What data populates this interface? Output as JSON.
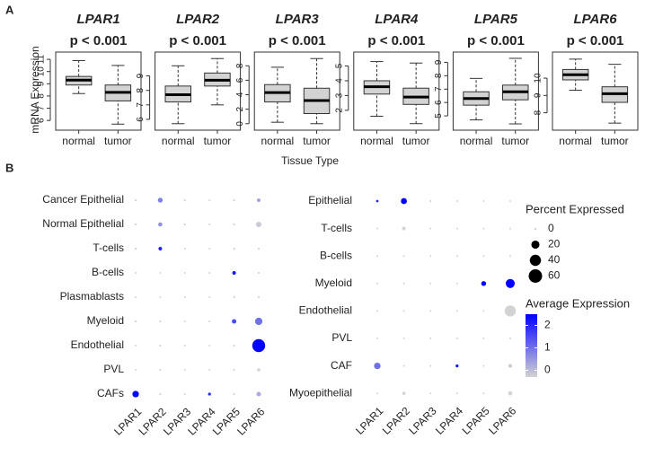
{
  "panel_labels": [
    "A",
    "B"
  ],
  "y_label": "mRNA Expression",
  "x_label": "Tissue Type",
  "chart_data": [
    {
      "type": "box",
      "title": "LPAR1",
      "subtitle": "p < 0.001",
      "categories": [
        "normal",
        "tumor"
      ],
      "color": "#d3d3d3",
      "boxes": [
        {
          "min": 8.2,
          "q1": 8.9,
          "median": 9.3,
          "q3": 9.6,
          "max": 10.9
        },
        {
          "min": 5.7,
          "q1": 7.6,
          "median": 8.3,
          "q3": 8.9,
          "max": 10.5
        }
      ],
      "ylim": [
        5.5,
        11.3
      ],
      "yticks": [
        6,
        7,
        8,
        9,
        10,
        11
      ]
    },
    {
      "type": "box",
      "title": "LPAR2",
      "subtitle": "p < 0.001",
      "categories": [
        "normal",
        "tumor"
      ],
      "color": "#d3d3d3",
      "boxes": [
        {
          "min": 5.7,
          "q1": 7.2,
          "median": 7.7,
          "q3": 8.3,
          "max": 9.7
        },
        {
          "min": 7.0,
          "q1": 8.3,
          "median": 8.7,
          "q3": 9.2,
          "max": 10.2
        }
      ],
      "ylim": [
        5.5,
        10.4
      ],
      "yticks": [
        6,
        7,
        8,
        9
      ]
    },
    {
      "type": "box",
      "title": "LPAR3",
      "subtitle": "p < 0.001",
      "categories": [
        "normal",
        "tumor"
      ],
      "color": "#d3d3d3",
      "boxes": [
        {
          "min": 0.2,
          "q1": 3.0,
          "median": 4.3,
          "q3": 5.4,
          "max": 7.8
        },
        {
          "min": 0,
          "q1": 1.4,
          "median": 3.2,
          "q3": 4.9,
          "max": 9.0
        }
      ],
      "ylim": [
        -0.4,
        9.4
      ],
      "yticks": [
        0,
        2,
        4,
        6,
        8
      ]
    },
    {
      "type": "box",
      "title": "LPAR4",
      "subtitle": "p < 0.001",
      "categories": [
        "normal",
        "tumor"
      ],
      "color": "#d3d3d3",
      "boxes": [
        {
          "min": 1.6,
          "q1": 3.1,
          "median": 3.6,
          "q3": 4.0,
          "max": 5.3
        },
        {
          "min": 1.1,
          "q1": 2.4,
          "median": 2.9,
          "q3": 3.5,
          "max": 5.2
        }
      ],
      "ylim": [
        0.9,
        5.7
      ],
      "yticks": [
        2,
        3,
        4,
        5
      ]
    },
    {
      "type": "box",
      "title": "LPAR5",
      "subtitle": "p < 0.001",
      "categories": [
        "normal",
        "tumor"
      ],
      "color": "#d3d3d3",
      "boxes": [
        {
          "min": 4.7,
          "q1": 5.8,
          "median": 6.3,
          "q3": 6.8,
          "max": 7.8
        },
        {
          "min": 4.4,
          "q1": 6.2,
          "median": 6.8,
          "q3": 7.3,
          "max": 9.3
        }
      ],
      "ylim": [
        4.2,
        9.5
      ],
      "yticks": [
        5,
        6,
        7,
        8,
        9
      ]
    },
    {
      "type": "box",
      "title": "LPAR6",
      "subtitle": "p < 0.001",
      "categories": [
        "normal",
        "tumor"
      ],
      "color": "#d3d3d3",
      "boxes": [
        {
          "min": 9.3,
          "q1": 9.9,
          "median": 10.2,
          "q3": 10.5,
          "max": 11.1
        },
        {
          "min": 7.4,
          "q1": 8.6,
          "median": 9.1,
          "q3": 9.5,
          "max": 10.8
        }
      ],
      "ylim": [
        7.2,
        11.3
      ],
      "yticks": [
        8,
        9,
        10
      ]
    },
    {
      "type": "dot",
      "x_categories": [
        "LPAR1",
        "LPAR2",
        "LPAR3",
        "LPAR4",
        "LPAR5",
        "LPAR6"
      ],
      "y_categories": [
        "Cancer Epithelial",
        "Normal Epithelial",
        "T-cells",
        "B-cells",
        "Plasmablasts",
        "Myeloid",
        "Endothelial",
        "PVL",
        "CAFs"
      ],
      "percent": [
        [
          0.5,
          6,
          0.5,
          0.3,
          0.5,
          3
        ],
        [
          0.5,
          4,
          0.5,
          0.3,
          0.5,
          8
        ],
        [
          0.5,
          3,
          0.3,
          0.3,
          0.5,
          0.5
        ],
        [
          0.3,
          0.3,
          0.3,
          0.3,
          3,
          0.5
        ],
        [
          0.3,
          0.3,
          0.3,
          0.3,
          0.5,
          0.5
        ],
        [
          0.5,
          0.5,
          0.3,
          0.3,
          5,
          16
        ],
        [
          0.3,
          0.5,
          0.3,
          0.3,
          0.5,
          55
        ],
        [
          0.3,
          0.3,
          0.3,
          0.3,
          0.5,
          2
        ],
        [
          12,
          0.5,
          0.3,
          1.5,
          0.5,
          5
        ]
      ],
      "avg_expression": [
        [
          -0.3,
          0.8,
          -0.3,
          -0.3,
          -0.3,
          0.3
        ],
        [
          -0.3,
          0.6,
          -0.3,
          -0.3,
          -0.3,
          -0.2
        ],
        [
          -0.3,
          2.0,
          -0.3,
          -0.3,
          -0.3,
          -0.3
        ],
        [
          -0.3,
          -0.3,
          -0.3,
          -0.3,
          2.2,
          -0.3
        ],
        [
          -0.3,
          -0.3,
          -0.3,
          -0.3,
          -0.3,
          -0.3
        ],
        [
          -0.3,
          -0.3,
          -0.3,
          -0.3,
          1.5,
          1.0
        ],
        [
          -0.3,
          -0.3,
          -0.3,
          -0.3,
          -0.3,
          2.5
        ],
        [
          -0.3,
          -0.3,
          -0.3,
          -0.3,
          -0.3,
          -0.3
        ],
        [
          2.4,
          -0.3,
          -0.3,
          2.0,
          -0.3,
          0.2
        ]
      ]
    },
    {
      "type": "dot",
      "x_categories": [
        "LPAR1",
        "LPAR2",
        "LPAR3",
        "LPAR4",
        "LPAR5",
        "LPAR6"
      ],
      "y_categories": [
        "Epithelial",
        "T-cells",
        "B-cells",
        "Myeloid",
        "Endothelial",
        "PVL",
        "CAF",
        "Myoepithelial"
      ],
      "percent": [
        [
          1,
          10,
          0.5,
          0.3,
          0.3,
          0.3
        ],
        [
          0.3,
          3,
          0.3,
          0.3,
          0.3,
          0.3
        ],
        [
          0.3,
          0.3,
          0.3,
          0.3,
          0.3,
          0.3
        ],
        [
          0.3,
          0.3,
          0.3,
          0.3,
          6,
          25
        ],
        [
          0.3,
          0.3,
          0.3,
          0.3,
          0.3,
          40
        ],
        [
          0.3,
          0.3,
          0.3,
          0.3,
          0.3,
          0.3
        ],
        [
          12,
          0.3,
          0.3,
          1.5,
          0.3,
          3
        ],
        [
          0.3,
          2,
          0.3,
          0.3,
          0.3,
          4
        ]
      ],
      "avg_expression": [
        [
          2.0,
          2.5,
          -0.3,
          -0.3,
          -0.3,
          -0.3
        ],
        [
          -0.3,
          -0.3,
          -0.3,
          -0.3,
          -0.3,
          -0.3
        ],
        [
          -0.3,
          -0.3,
          -0.3,
          -0.3,
          -0.3,
          -0.3
        ],
        [
          -0.3,
          -0.3,
          -0.3,
          -0.3,
          2.4,
          2.5
        ],
        [
          -0.3,
          -0.3,
          -0.3,
          -0.3,
          -0.3,
          -0.3
        ],
        [
          -0.3,
          -0.3,
          -0.3,
          -0.3,
          -0.3,
          -0.3
        ],
        [
          1.0,
          -0.3,
          -0.3,
          2.3,
          -0.3,
          -0.2
        ],
        [
          -0.3,
          -0.3,
          -0.3,
          -0.3,
          -0.3,
          -0.3
        ]
      ],
      "size_legend": {
        "title": "Percent Expressed",
        "values": [
          0,
          20,
          40,
          60
        ]
      },
      "color_legend": {
        "title": "Average Expression",
        "lim": [
          -0.3,
          2.5
        ],
        "ticks": [
          0,
          1,
          2
        ],
        "colors": [
          "#d3d3d3",
          "#0000ff"
        ]
      }
    }
  ]
}
